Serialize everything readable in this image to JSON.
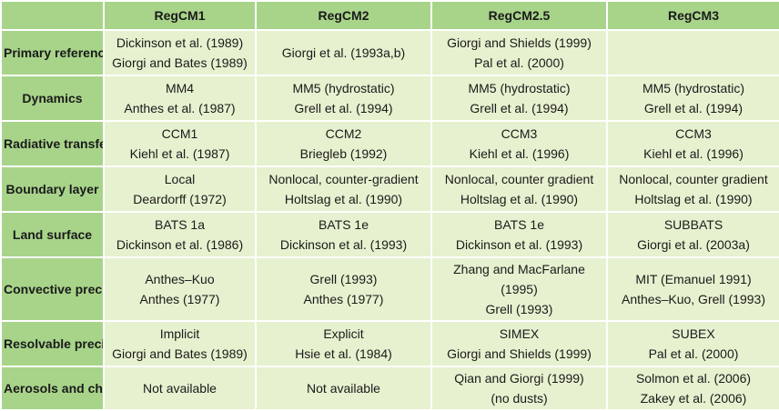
{
  "columns": [
    "RegCM1",
    "RegCM2",
    "RegCM2.5",
    "RegCM3"
  ],
  "rows": [
    {
      "label": "Primary references",
      "cells": [
        [
          "Dickinson et al. (1989)",
          "Giorgi and Bates (1989)"
        ],
        [
          "Giorgi et al. (1993a,b)"
        ],
        [
          "Giorgi and Shields (1999)",
          "Pal et al. (2000)"
        ],
        []
      ]
    },
    {
      "label": "Dynamics",
      "cells": [
        [
          "MM4",
          "Anthes et al. (1987)"
        ],
        [
          "MM5 (hydrostatic)",
          "Grell et al. (1994)"
        ],
        [
          "MM5 (hydrostatic)",
          "Grell et al. (1994)"
        ],
        [
          "MM5 (hydrostatic)",
          "Grell et al. (1994)"
        ]
      ]
    },
    {
      "label": "Radiative transfer",
      "cells": [
        [
          "CCM1",
          "Kiehl et al. (1987)"
        ],
        [
          "CCM2",
          "Briegleb (1992)"
        ],
        [
          "CCM3",
          "Kiehl et al. (1996)"
        ],
        [
          "CCM3",
          "Kiehl et al. (1996)"
        ]
      ]
    },
    {
      "label": "Boundary layer",
      "cells": [
        [
          "Local",
          "Deardorff (1972)"
        ],
        [
          "Nonlocal, counter-gradient",
          "Holtslag et al. (1990)"
        ],
        [
          "Nonlocal, counter gradient",
          "Holtslag et al. (1990)"
        ],
        [
          "Nonlocal, counter gradient",
          "Holtslag et al. (1990)"
        ]
      ]
    },
    {
      "label": "Land surface",
      "cells": [
        [
          "BATS 1a",
          "Dickinson et al. (1986)"
        ],
        [
          "BATS 1e",
          "Dickinson et al. (1993)"
        ],
        [
          "BATS 1e",
          "Dickinson et al. (1993)"
        ],
        [
          "SUBBATS",
          "Giorgi et al. (2003a)"
        ]
      ]
    },
    {
      "label": "Convective precipitation",
      "cells": [
        [
          "Anthes–Kuo",
          "Anthes (1977)"
        ],
        [
          "Grell (1993)",
          "Anthes (1977)"
        ],
        [
          "Zhang and MacFarlane",
          "(1995)",
          "Grell (1993)"
        ],
        [
          "MIT (Emanuel 1991)",
          "Anthes–Kuo, Grell (1993)"
        ]
      ]
    },
    {
      "label": "Resolvable precipitation",
      "cells": [
        [
          "Implicit",
          "Giorgi and Bates (1989)"
        ],
        [
          "Explicit",
          "Hsie et al. (1984)"
        ],
        [
          "SIMEX",
          "Giorgi and Shields (1999)"
        ],
        [
          "SUBEX",
          "Pal et al. (2000)"
        ]
      ]
    },
    {
      "label": "Aerosols and chemistry",
      "cells": [
        [
          "Not available"
        ],
        [
          "Not available"
        ],
        [
          "Qian and Giorgi (1999)",
          "(no dusts)"
        ],
        [
          "Solmon et al. (2006)",
          "Zakey et al. (2006)"
        ]
      ]
    }
  ]
}
